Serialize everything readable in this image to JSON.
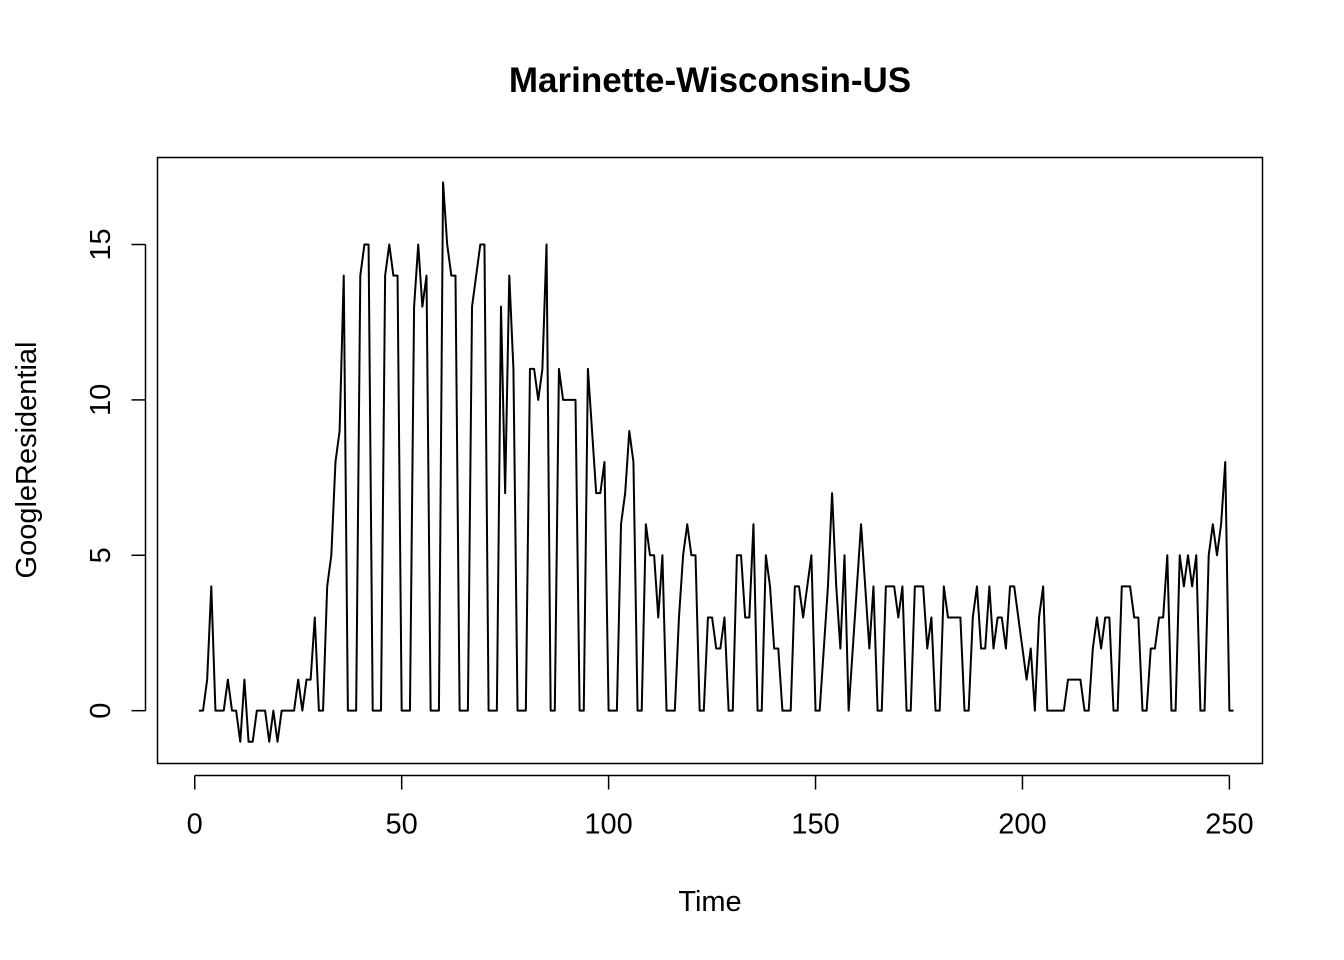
{
  "chart_data": {
    "type": "line",
    "title": "Marinette-Wisconsin-US",
    "xlabel": "Time",
    "ylabel": "GoogleResidential",
    "xlim": [
      -9,
      258
    ],
    "ylim": [
      -1.7,
      17.8
    ],
    "x_ticks": [
      0,
      50,
      100,
      150,
      200,
      250
    ],
    "x_tick_labels": [
      "0",
      "50",
      "100",
      "150",
      "200",
      "250"
    ],
    "y_ticks": [
      0,
      5,
      10,
      15
    ],
    "y_tick_labels": [
      "0",
      "5",
      "10",
      "15"
    ],
    "grid": false,
    "legend": "none",
    "line_color": "#000000",
    "series": [
      {
        "x_start": 1,
        "values": [
          0,
          0,
          1,
          4,
          0,
          0,
          0,
          1,
          0,
          0,
          -1,
          1,
          -1,
          -1,
          0,
          0,
          0,
          -1,
          0,
          -1,
          0,
          0,
          0,
          0,
          1,
          0,
          1,
          1,
          3,
          0,
          0,
          4,
          5,
          8,
          9,
          14,
          0,
          0,
          0,
          14,
          15,
          15,
          0,
          0,
          0,
          14,
          15,
          14,
          14,
          0,
          0,
          0,
          13,
          15,
          13,
          14,
          0,
          0,
          0,
          17,
          15,
          14,
          14,
          0,
          0,
          0,
          13,
          14,
          15,
          15,
          0,
          0,
          0,
          13,
          7,
          14,
          11,
          0,
          0,
          0,
          11,
          11,
          10,
          11,
          15,
          0,
          0,
          11,
          10,
          10,
          10,
          10,
          0,
          0,
          11,
          9,
          7,
          7,
          8,
          0,
          0,
          0,
          6,
          7,
          9,
          8,
          0,
          0,
          6,
          5,
          5,
          3,
          5,
          0,
          0,
          0,
          3,
          5,
          6,
          5,
          5,
          0,
          0,
          3,
          3,
          2,
          2,
          3,
          0,
          0,
          5,
          5,
          3,
          3,
          6,
          0,
          0,
          5,
          4,
          2,
          2,
          0,
          0,
          0,
          4,
          4,
          3,
          4,
          5,
          0,
          0,
          2,
          4,
          7,
          4,
          2,
          5,
          0,
          2,
          4,
          6,
          4,
          2,
          4,
          0,
          0,
          4,
          4,
          4,
          3,
          4,
          0,
          0,
          4,
          4,
          4,
          2,
          3,
          0,
          0,
          4,
          3,
          3,
          3,
          3,
          0,
          0,
          3,
          4,
          2,
          2,
          4,
          2,
          3,
          3,
          2,
          4,
          4,
          3,
          2,
          1,
          2,
          0,
          3,
          4,
          0,
          0,
          0,
          0,
          0,
          1,
          1,
          1,
          1,
          0,
          0,
          2,
          3,
          2,
          3,
          3,
          0,
          0,
          4,
          4,
          4,
          3,
          3,
          0,
          0,
          2,
          2,
          3,
          3,
          5,
          0,
          0,
          5,
          4,
          5,
          4,
          5,
          0,
          0,
          5,
          6,
          5,
          6,
          8,
          0,
          0
        ]
      }
    ]
  }
}
